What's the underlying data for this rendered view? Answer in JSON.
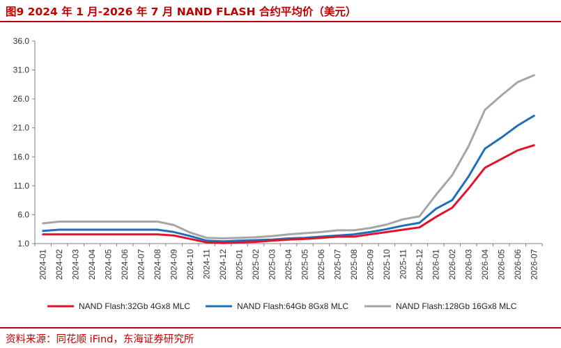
{
  "title": "图9  2024 年 1 月-2026 年 7 月 NAND FLASH 合约平均价（美元）",
  "source": "资料来源：同花顺 iFind，东海证券研究所",
  "chart_data": {
    "type": "line",
    "ylim": [
      1.0,
      36.0
    ],
    "yticks": [
      "36.0",
      "31.0",
      "26.0",
      "21.0",
      "16.0",
      "11.0",
      "6.0",
      "1.0"
    ],
    "grid": false,
    "legend_position": "bottom",
    "x": [
      "2024-01",
      "2024-02",
      "2024-03",
      "2024-04",
      "2024-05",
      "2024-06",
      "2024-07",
      "2024-08",
      "2024-09",
      "2024-10",
      "2024-11",
      "2024-12",
      "2025-01",
      "2025-02",
      "2025-03",
      "2025-04",
      "2025-05",
      "2025-06",
      "2025-07",
      "2025-08",
      "2025-09",
      "2025-10",
      "2025-11",
      "2025-12",
      "2026-01",
      "2026-02",
      "2026-03",
      "2026-04",
      "2026-05",
      "2026-06",
      "2026-07"
    ],
    "series": [
      {
        "name": "NAND Flash:32Gb 4Gx8 MLC",
        "color": "#E0142E",
        "values": [
          2.6,
          2.6,
          2.6,
          2.6,
          2.6,
          2.6,
          2.6,
          2.6,
          2.4,
          1.8,
          1.2,
          1.1,
          1.2,
          1.3,
          1.5,
          1.7,
          1.8,
          2.0,
          2.2,
          2.2,
          2.6,
          3.0,
          3.4,
          3.8,
          5.6,
          7.2,
          10.5,
          14.1,
          15.6,
          17.1,
          18.0
        ]
      },
      {
        "name": "NAND Flash:64Gb 8Gx8 MLC",
        "color": "#1F6FB8",
        "values": [
          3.2,
          3.4,
          3.4,
          3.4,
          3.4,
          3.4,
          3.4,
          3.4,
          3.0,
          2.3,
          1.5,
          1.4,
          1.5,
          1.6,
          1.7,
          1.9,
          2.0,
          2.2,
          2.4,
          2.6,
          3.0,
          3.5,
          4.1,
          4.6,
          7.0,
          8.5,
          12.6,
          17.4,
          19.3,
          21.4,
          23.1
        ]
      },
      {
        "name": "NAND Flash:128Gb 16Gx8 MLC",
        "color": "#A6A6A6",
        "values": [
          4.5,
          4.8,
          4.8,
          4.8,
          4.8,
          4.8,
          4.8,
          4.8,
          4.2,
          2.9,
          2.0,
          1.9,
          2.0,
          2.1,
          2.3,
          2.6,
          2.8,
          3.0,
          3.3,
          3.3,
          3.7,
          4.3,
          5.2,
          5.7,
          9.4,
          12.8,
          17.8,
          24.1,
          26.6,
          28.9,
          30.1
        ]
      }
    ]
  }
}
